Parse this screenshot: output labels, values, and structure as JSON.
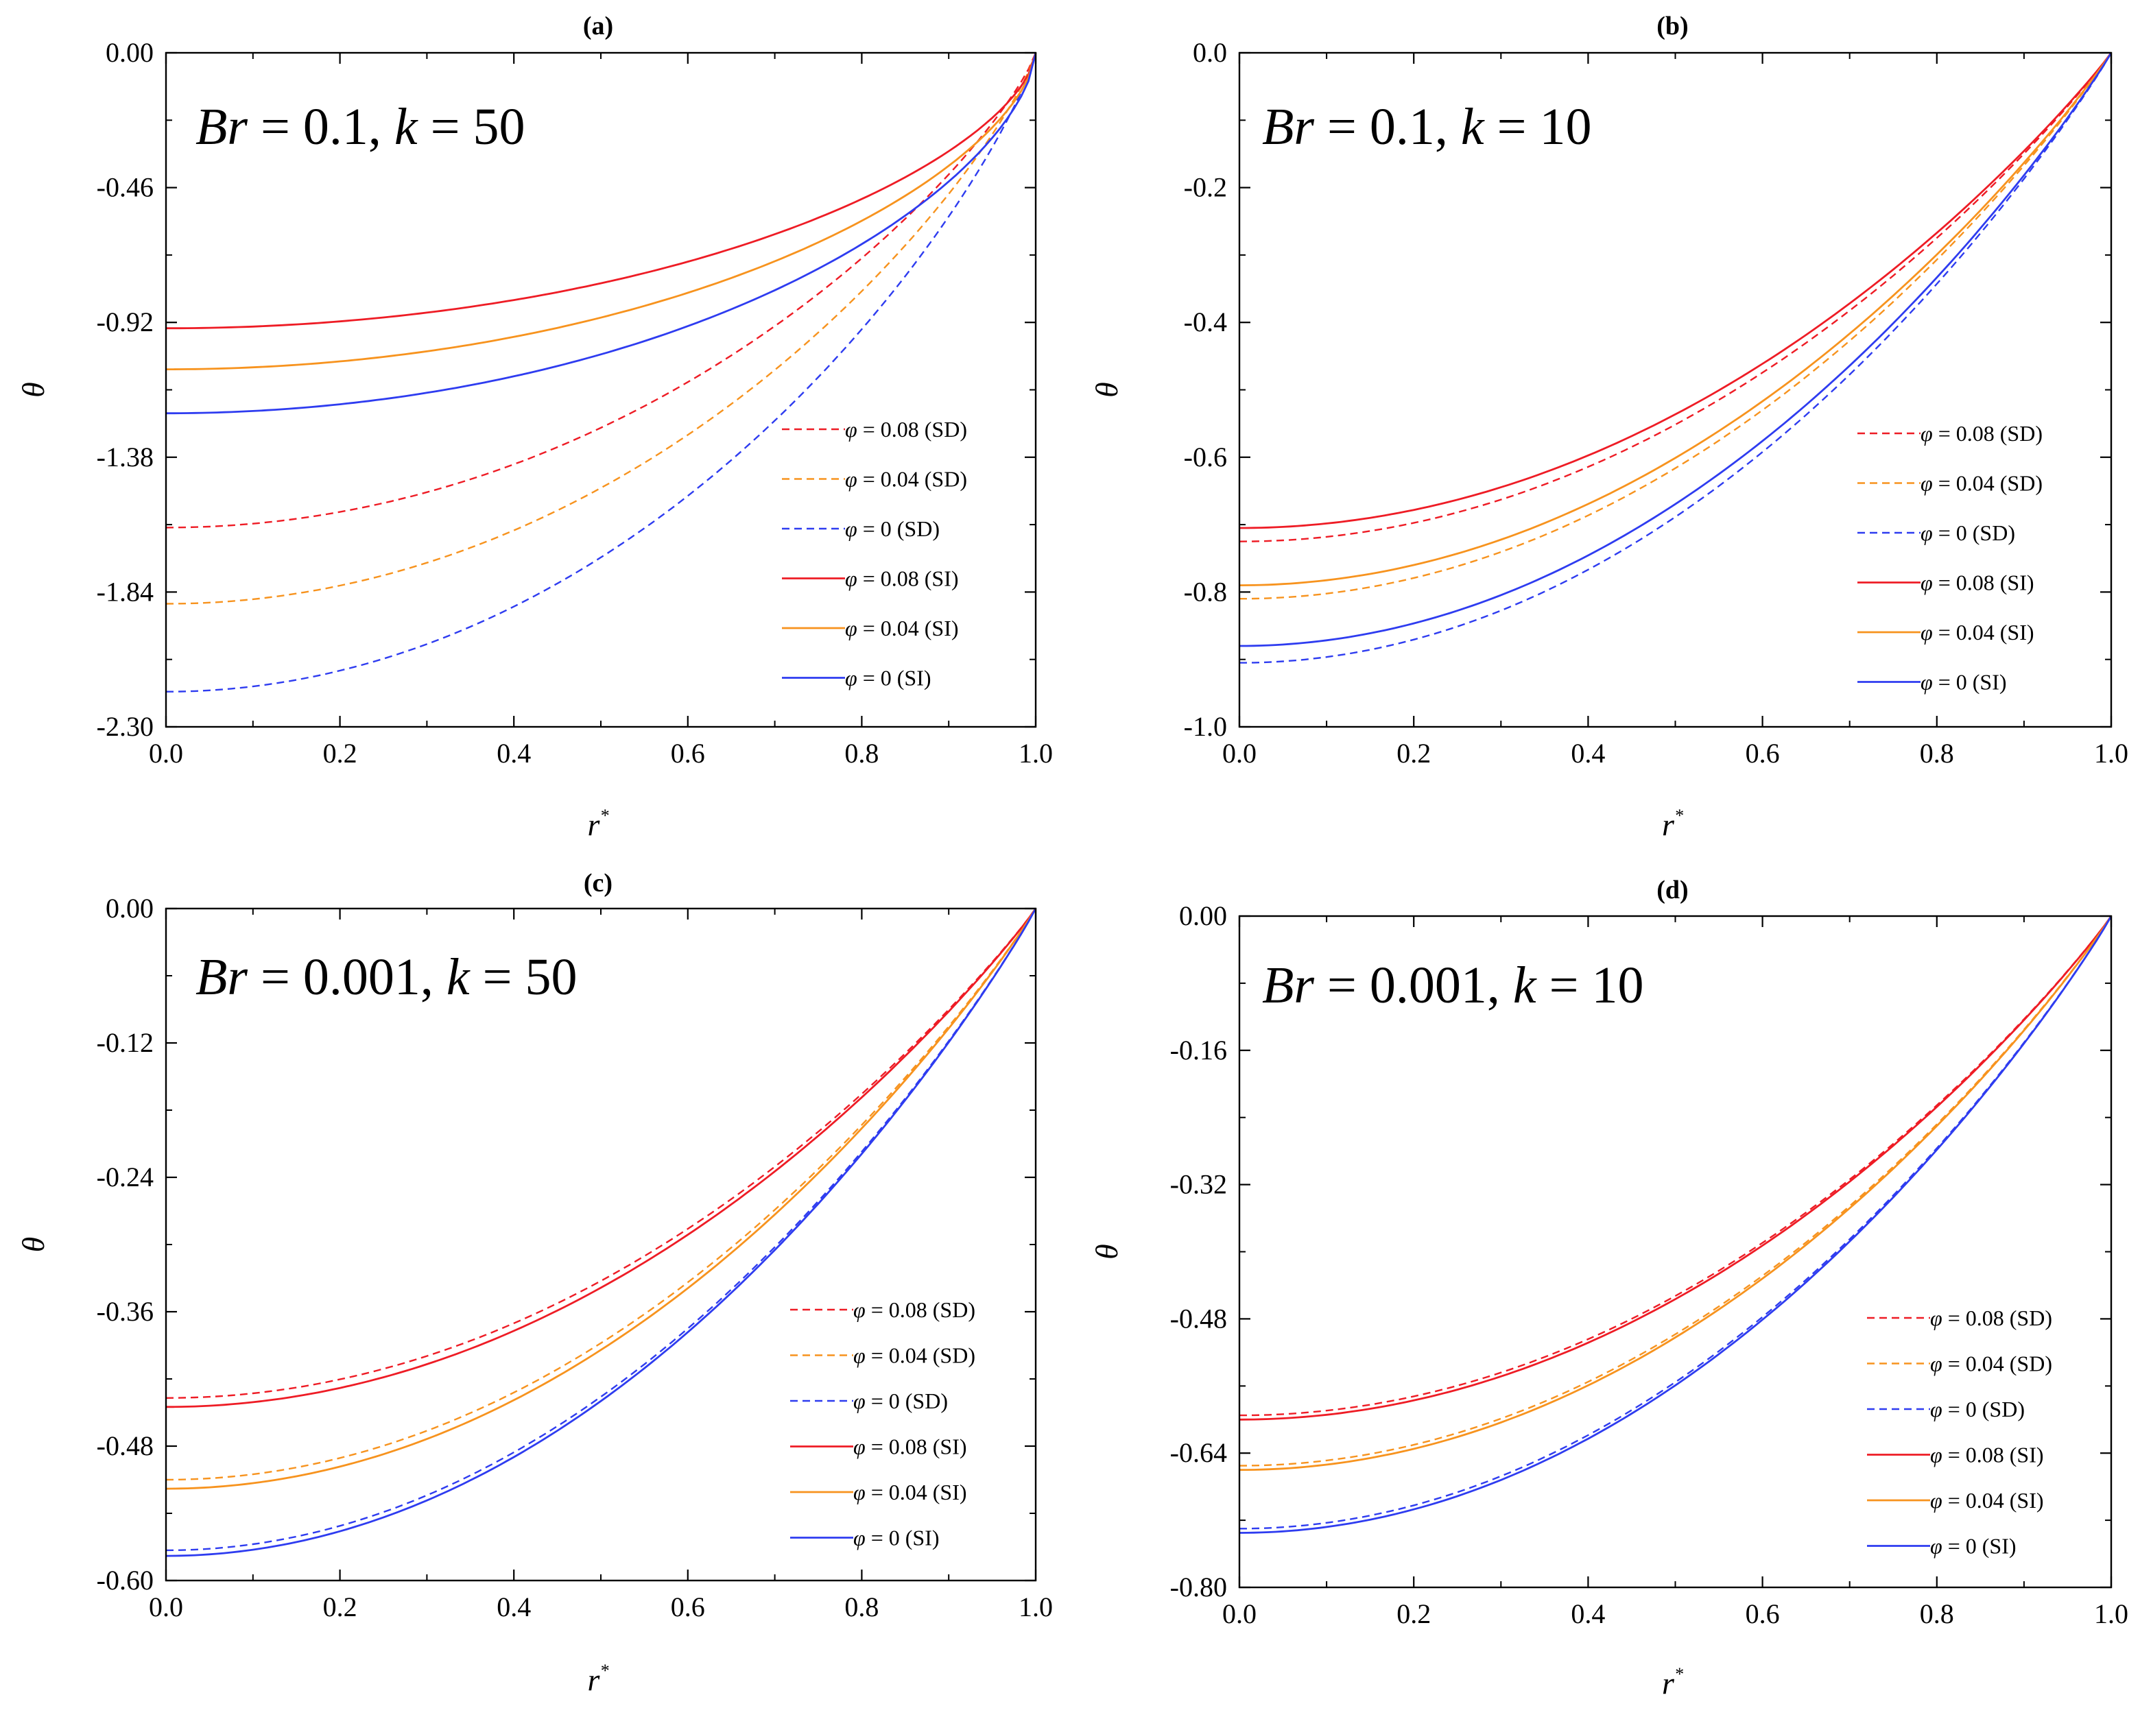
{
  "figure": {
    "legend_entry_order": [
      0,
      1,
      2,
      3,
      4,
      5
    ]
  },
  "chart_data": [
    {
      "type": "line",
      "panel_label": "(a)",
      "annotation": {
        "var1": "Br",
        "val1": "0.1",
        "var2": "k",
        "val2": "50"
      },
      "xlabel": "r",
      "xlabel_sup": "*",
      "ylabel": "θ",
      "xlim": [
        0,
        1
      ],
      "ylim": [
        -2.3,
        0
      ],
      "xticks": [
        0,
        0.2,
        0.4,
        0.6,
        0.8,
        1.0
      ],
      "xtick_labels": [
        "0.0",
        "0.2",
        "0.4",
        "0.6",
        "0.8",
        "1.0"
      ],
      "yticks": [
        0,
        -0.46,
        -0.92,
        -1.38,
        -1.84,
        -2.3
      ],
      "ytick_labels": [
        "0.00",
        "-0.46",
        "-0.92",
        "-1.38",
        "-1.84",
        "-2.30"
      ],
      "series": [
        {
          "name": "φ = 0.08 (SD)",
          "phi": "0.08",
          "model": "SD",
          "color": "#ee1c25",
          "dashed": true,
          "theta0": -1.62
        },
        {
          "name": "φ = 0.04 (SD)",
          "phi": "0.04",
          "model": "SD",
          "color": "#f7931e",
          "dashed": true,
          "theta0": -1.88
        },
        {
          "name": "φ = 0 (SD)",
          "phi": "0",
          "model": "SD",
          "color": "#2e3cf0",
          "dashed": true,
          "theta0": -2.18
        },
        {
          "name": "φ = 0.08 (SI)",
          "phi": "0.08",
          "model": "SI",
          "color": "#ee1c25",
          "dashed": false,
          "theta0": -0.94
        },
        {
          "name": "φ = 0.04 (SI)",
          "phi": "0.04",
          "model": "SI",
          "color": "#f7931e",
          "dashed": false,
          "theta0": -1.08
        },
        {
          "name": "φ = 0 (SI)",
          "phi": "0",
          "model": "SI",
          "color": "#2e3cf0",
          "dashed": false,
          "theta0": -1.23
        }
      ]
    },
    {
      "type": "line",
      "panel_label": "(b)",
      "annotation": {
        "var1": "Br",
        "val1": "0.1",
        "var2": "k",
        "val2": "10"
      },
      "xlabel": "r",
      "xlabel_sup": "*",
      "ylabel": "θ",
      "xlim": [
        0,
        1
      ],
      "ylim": [
        -1.0,
        0
      ],
      "xticks": [
        0,
        0.2,
        0.4,
        0.6,
        0.8,
        1.0
      ],
      "xtick_labels": [
        "0.0",
        "0.2",
        "0.4",
        "0.6",
        "0.8",
        "1.0"
      ],
      "yticks": [
        0,
        -0.2,
        -0.4,
        -0.6,
        -0.8,
        -1.0
      ],
      "ytick_labels": [
        "0.0",
        "-0.2",
        "-0.4",
        "-0.6",
        "-0.8",
        "-1.0"
      ],
      "series": [
        {
          "name": "φ = 0.08 (SD)",
          "phi": "0.08",
          "model": "SD",
          "color": "#ee1c25",
          "dashed": true,
          "theta0": -0.725
        },
        {
          "name": "φ = 0.04 (SD)",
          "phi": "0.04",
          "model": "SD",
          "color": "#f7931e",
          "dashed": true,
          "theta0": -0.81
        },
        {
          "name": "φ = 0 (SD)",
          "phi": "0",
          "model": "SD",
          "color": "#2e3cf0",
          "dashed": true,
          "theta0": -0.905
        },
        {
          "name": "φ = 0.08 (SI)",
          "phi": "0.08",
          "model": "SI",
          "color": "#ee1c25",
          "dashed": false,
          "theta0": -0.705
        },
        {
          "name": "φ = 0.04 (SI)",
          "phi": "0.04",
          "model": "SI",
          "color": "#f7931e",
          "dashed": false,
          "theta0": -0.79
        },
        {
          "name": "φ = 0 (SI)",
          "phi": "0",
          "model": "SI",
          "color": "#2e3cf0",
          "dashed": false,
          "theta0": -0.88
        }
      ]
    },
    {
      "type": "line",
      "panel_label": "(c)",
      "annotation": {
        "var1": "Br",
        "val1": "0.001",
        "var2": "k",
        "val2": "50"
      },
      "xlabel": "r",
      "xlabel_sup": "*",
      "ylabel": "θ",
      "xlim": [
        0,
        1
      ],
      "ylim": [
        -0.6,
        0
      ],
      "xticks": [
        0,
        0.2,
        0.4,
        0.6,
        0.8,
        1.0
      ],
      "xtick_labels": [
        "0.0",
        "0.2",
        "0.4",
        "0.6",
        "0.8",
        "1.0"
      ],
      "yticks": [
        0,
        -0.12,
        -0.24,
        -0.36,
        -0.48,
        -0.6
      ],
      "ytick_labels": [
        "0.00",
        "-0.12",
        "-0.24",
        "-0.36",
        "-0.48",
        "-0.60"
      ],
      "series": [
        {
          "name": "φ = 0.08 (SD)",
          "phi": "0.08",
          "model": "SD",
          "color": "#ee1c25",
          "dashed": true,
          "theta0": -0.437
        },
        {
          "name": "φ = 0.04 (SD)",
          "phi": "0.04",
          "model": "SD",
          "color": "#f7931e",
          "dashed": true,
          "theta0": -0.51
        },
        {
          "name": "φ = 0 (SD)",
          "phi": "0",
          "model": "SD",
          "color": "#2e3cf0",
          "dashed": true,
          "theta0": -0.573
        },
        {
          "name": "φ = 0.08 (SI)",
          "phi": "0.08",
          "model": "SI",
          "color": "#ee1c25",
          "dashed": false,
          "theta0": -0.445
        },
        {
          "name": "φ = 0.04 (SI)",
          "phi": "0.04",
          "model": "SI",
          "color": "#f7931e",
          "dashed": false,
          "theta0": -0.518
        },
        {
          "name": "φ = 0 (SI)",
          "phi": "0",
          "model": "SI",
          "color": "#2e3cf0",
          "dashed": false,
          "theta0": -0.578
        }
      ]
    },
    {
      "type": "line",
      "panel_label": "(d)",
      "annotation": {
        "var1": "Br",
        "val1": "0.001",
        "var2": "k",
        "val2": "10"
      },
      "xlabel": "r",
      "xlabel_sup": "*",
      "ylabel": "θ",
      "xlim": [
        0,
        1
      ],
      "ylim": [
        -0.8,
        0
      ],
      "xticks": [
        0,
        0.2,
        0.4,
        0.6,
        0.8,
        1.0
      ],
      "xtick_labels": [
        "0.0",
        "0.2",
        "0.4",
        "0.6",
        "0.8",
        "1.0"
      ],
      "yticks": [
        0,
        -0.16,
        -0.32,
        -0.48,
        -0.64,
        -0.8
      ],
      "ytick_labels": [
        "0.00",
        "-0.16",
        "-0.32",
        "-0.48",
        "-0.64",
        "-0.80"
      ],
      "series": [
        {
          "name": "φ = 0.08 (SD)",
          "phi": "0.08",
          "model": "SD",
          "color": "#ee1c25",
          "dashed": true,
          "theta0": -0.595
        },
        {
          "name": "φ = 0.04 (SD)",
          "phi": "0.04",
          "model": "SD",
          "color": "#f7931e",
          "dashed": true,
          "theta0": -0.655
        },
        {
          "name": "φ = 0 (SD)",
          "phi": "0",
          "model": "SD",
          "color": "#2e3cf0",
          "dashed": true,
          "theta0": -0.73
        },
        {
          "name": "φ = 0.08 (SI)",
          "phi": "0.08",
          "model": "SI",
          "color": "#ee1c25",
          "dashed": false,
          "theta0": -0.6
        },
        {
          "name": "φ = 0.04 (SI)",
          "phi": "0.04",
          "model": "SI",
          "color": "#f7931e",
          "dashed": false,
          "theta0": -0.66
        },
        {
          "name": "φ = 0 (SI)",
          "phi": "0",
          "model": "SI",
          "color": "#2e3cf0",
          "dashed": false,
          "theta0": -0.735
        }
      ]
    }
  ]
}
